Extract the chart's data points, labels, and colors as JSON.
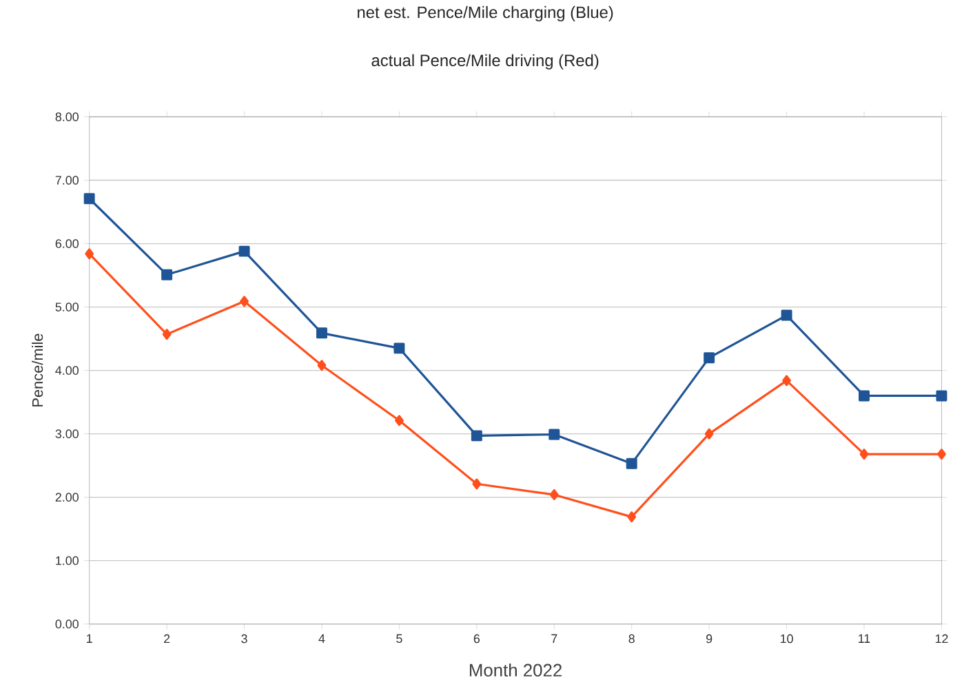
{
  "chart_data": {
    "type": "line",
    "title": "net est. Pence/Mile charging (Blue)",
    "subtitle": "actual Pence/Mile driving (Red)",
    "xlabel": "Month 2022",
    "ylabel": "Pence/mile",
    "x": [
      1,
      2,
      3,
      4,
      5,
      6,
      7,
      8,
      9,
      10,
      11,
      12
    ],
    "series": [
      {
        "color": "#1f5596",
        "marker": "square",
        "values": [
          6.71,
          5.51,
          5.88,
          4.59,
          4.35,
          2.97,
          2.99,
          2.53,
          4.2,
          4.87,
          3.6,
          3.6
        ]
      },
      {
        "color": "#ff4f1c",
        "marker": "diamond",
        "values": [
          5.84,
          4.57,
          5.09,
          4.08,
          3.21,
          2.21,
          2.04,
          1.69,
          3.0,
          3.84,
          2.68,
          2.68
        ]
      }
    ],
    "xlim": [
      1,
      12
    ],
    "xticks": [
      1,
      2,
      3,
      4,
      5,
      6,
      7,
      8,
      9,
      10,
      11,
      12
    ],
    "ylim": [
      0,
      8
    ],
    "yticks": [
      {
        "value": 0,
        "label": "0.00"
      },
      {
        "value": 1,
        "label": "1.00"
      },
      {
        "value": 2,
        "label": "2.00"
      },
      {
        "value": 3,
        "label": "3.00"
      },
      {
        "value": 4,
        "label": "4.00"
      },
      {
        "value": 5,
        "label": "5.00"
      },
      {
        "value": 6,
        "label": "6.00"
      },
      {
        "value": 7,
        "label": "7.00"
      },
      {
        "value": 8,
        "label": "8.00"
      }
    ],
    "grid": "y"
  }
}
